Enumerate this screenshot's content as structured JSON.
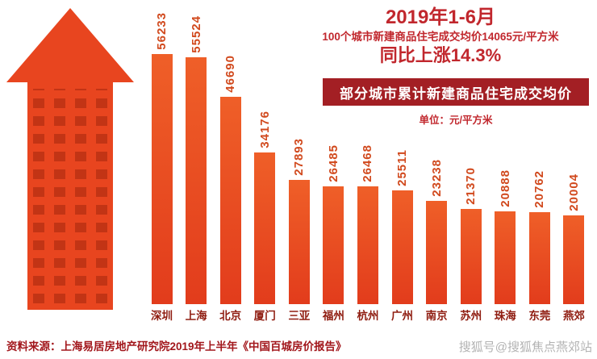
{
  "header": {
    "period": "2019年1-6月",
    "subtitle": "100个城市新建商品住宅成交均价14065元/平方米",
    "growth": "同比上涨14.3%"
  },
  "banner": {
    "title": "部分城市累计新建商品住宅成交均价"
  },
  "unit_label": "单位：元/平方米",
  "source": "资料来源：上海易居房地产研究院2019年上半年《中国百城房价报告》",
  "watermark": "搜狐号@搜狐焦点燕郊站",
  "colors": {
    "heading_red": "#c1272d",
    "banner_bg": "#a31f24",
    "bar_orange": "#e8451f",
    "bar_gradient_top": "#ef5f28",
    "bar_gradient_bottom": "#e23c1c",
    "value_label": "#d1491d",
    "city_label": "#8f1c10",
    "window_dark": "#c23415",
    "watermark_gray": "#b3b3b3"
  },
  "chart_data": {
    "type": "bar",
    "title": "部分城市累计新建商品住宅成交均价",
    "xlabel": "城市",
    "ylabel": "成交均价",
    "unit": "元/平方米",
    "ylim": [
      0,
      60000
    ],
    "legend": false,
    "grid": false,
    "categories": [
      "深圳",
      "上海",
      "北京",
      "厦门",
      "三亚",
      "福州",
      "杭州",
      "广州",
      "南京",
      "苏州",
      "珠海",
      "东莞",
      "燕郊"
    ],
    "values": [
      56233,
      55524,
      46690,
      34176,
      27893,
      26485,
      26468,
      25511,
      23238,
      21370,
      20888,
      20762,
      20004
    ]
  }
}
